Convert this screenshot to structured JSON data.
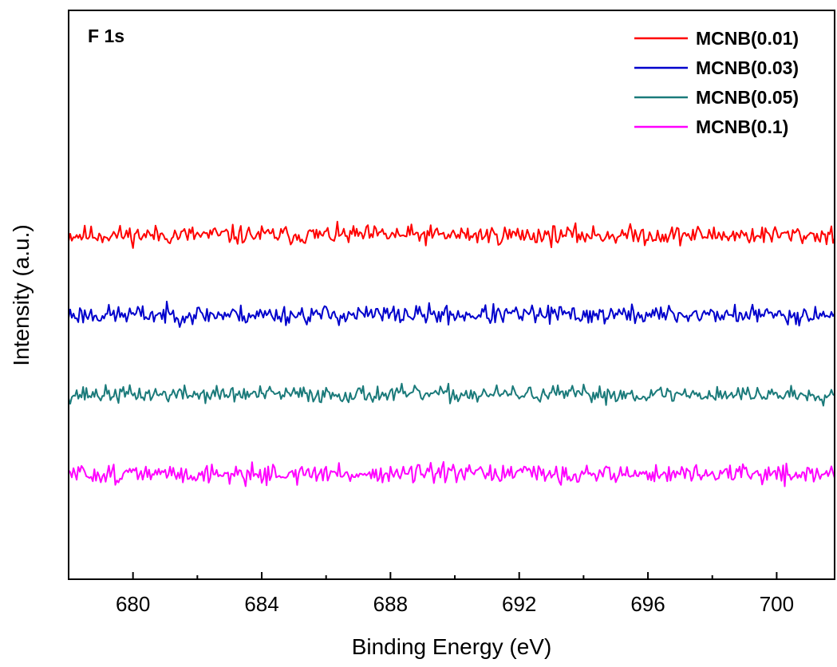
{
  "chart_data": {
    "type": "line",
    "title": "",
    "annotation": "F 1s",
    "xlabel": "Binding Energy (eV)",
    "ylabel": "Intensity (a.u.)",
    "xlim": [
      678,
      701.8
    ],
    "ylim": [
      0,
      1
    ],
    "xticks": [
      680,
      684,
      688,
      692,
      696,
      700
    ],
    "x_minor_ticks": [
      682,
      686,
      690,
      694,
      698
    ],
    "grid": false,
    "legend_position": "top-right",
    "x_step": 0.05,
    "series": [
      {
        "name": "MCNB(0.01)",
        "color": "#ff0000",
        "baseline": 0.605,
        "amplitude": 0.025,
        "seed": 11
      },
      {
        "name": "MCNB(0.03)",
        "color": "#0000cc",
        "baseline": 0.465,
        "amplitude": 0.025,
        "seed": 23
      },
      {
        "name": "MCNB(0.05)",
        "color": "#1a7a7a",
        "baseline": 0.325,
        "amplitude": 0.022,
        "seed": 37
      },
      {
        "name": "MCNB(0.1)",
        "color": "#ff00ff",
        "baseline": 0.185,
        "amplitude": 0.025,
        "seed": 51
      }
    ]
  }
}
